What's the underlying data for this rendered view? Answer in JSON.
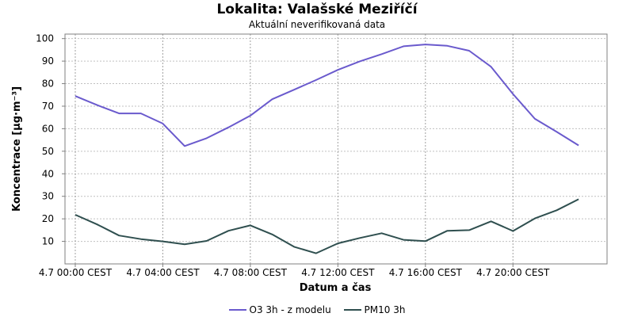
{
  "title": "Lokalita: Valašské Meziříčí",
  "subtitle": "Aktuální neverifikovaná data",
  "colors": {
    "o3": "#6a5acd",
    "pm10": "#2f4f4f"
  },
  "chart_data": {
    "type": "line",
    "title": "Lokalita: Valašské Meziříčí",
    "subtitle": "Aktuální neverifikovaná data",
    "xlabel": "Datum a čas",
    "ylabel": "Koncentrace [µg·m⁻³]",
    "ylim": [
      0,
      102
    ],
    "y_ticks": [
      10,
      20,
      30,
      40,
      50,
      60,
      70,
      80,
      90,
      100
    ],
    "xlim": [
      "4.7 00:00 CEST",
      "4.7 23:00 CEST"
    ],
    "x_tick_labels": [
      "4.7 00:00 CEST",
      "4.7 04:00 CEST",
      "4.7 08:00 CEST",
      "4.7 12:00 CEST",
      "4.7 16:00 CEST",
      "4.7 20:00 CEST"
    ],
    "x_tick_hours": [
      0,
      4,
      8,
      12,
      16,
      20
    ],
    "grid": true,
    "legend": "bottom",
    "x_hours": [
      0,
      1,
      2,
      3,
      4,
      5,
      6,
      7,
      8,
      9,
      10,
      11,
      12,
      13,
      14,
      15,
      16,
      17,
      18,
      19,
      20,
      21,
      22,
      23
    ],
    "series": [
      {
        "name": "O3 3h - z modelu",
        "color": "#6a5acd",
        "values": [
          74.5,
          70.5,
          66.8,
          66.8,
          62.3,
          52.3,
          55.8,
          60.6,
          65.8,
          73.1,
          77.3,
          81.6,
          86.1,
          89.9,
          93.1,
          96.6,
          97.4,
          96.8,
          94.6,
          87.5,
          75.4,
          64.4,
          58.6,
          52.6
        ]
      },
      {
        "name": "PM10 3h",
        "color": "#2f4f4f",
        "values": [
          21.8,
          17.5,
          12.6,
          11.0,
          10.0,
          8.7,
          10.2,
          14.7,
          17.1,
          13.1,
          7.6,
          4.7,
          9.1,
          11.5,
          13.6,
          10.7,
          10.1,
          14.7,
          15.0,
          18.9,
          14.6,
          20.2,
          23.8,
          28.7
        ]
      }
    ]
  }
}
